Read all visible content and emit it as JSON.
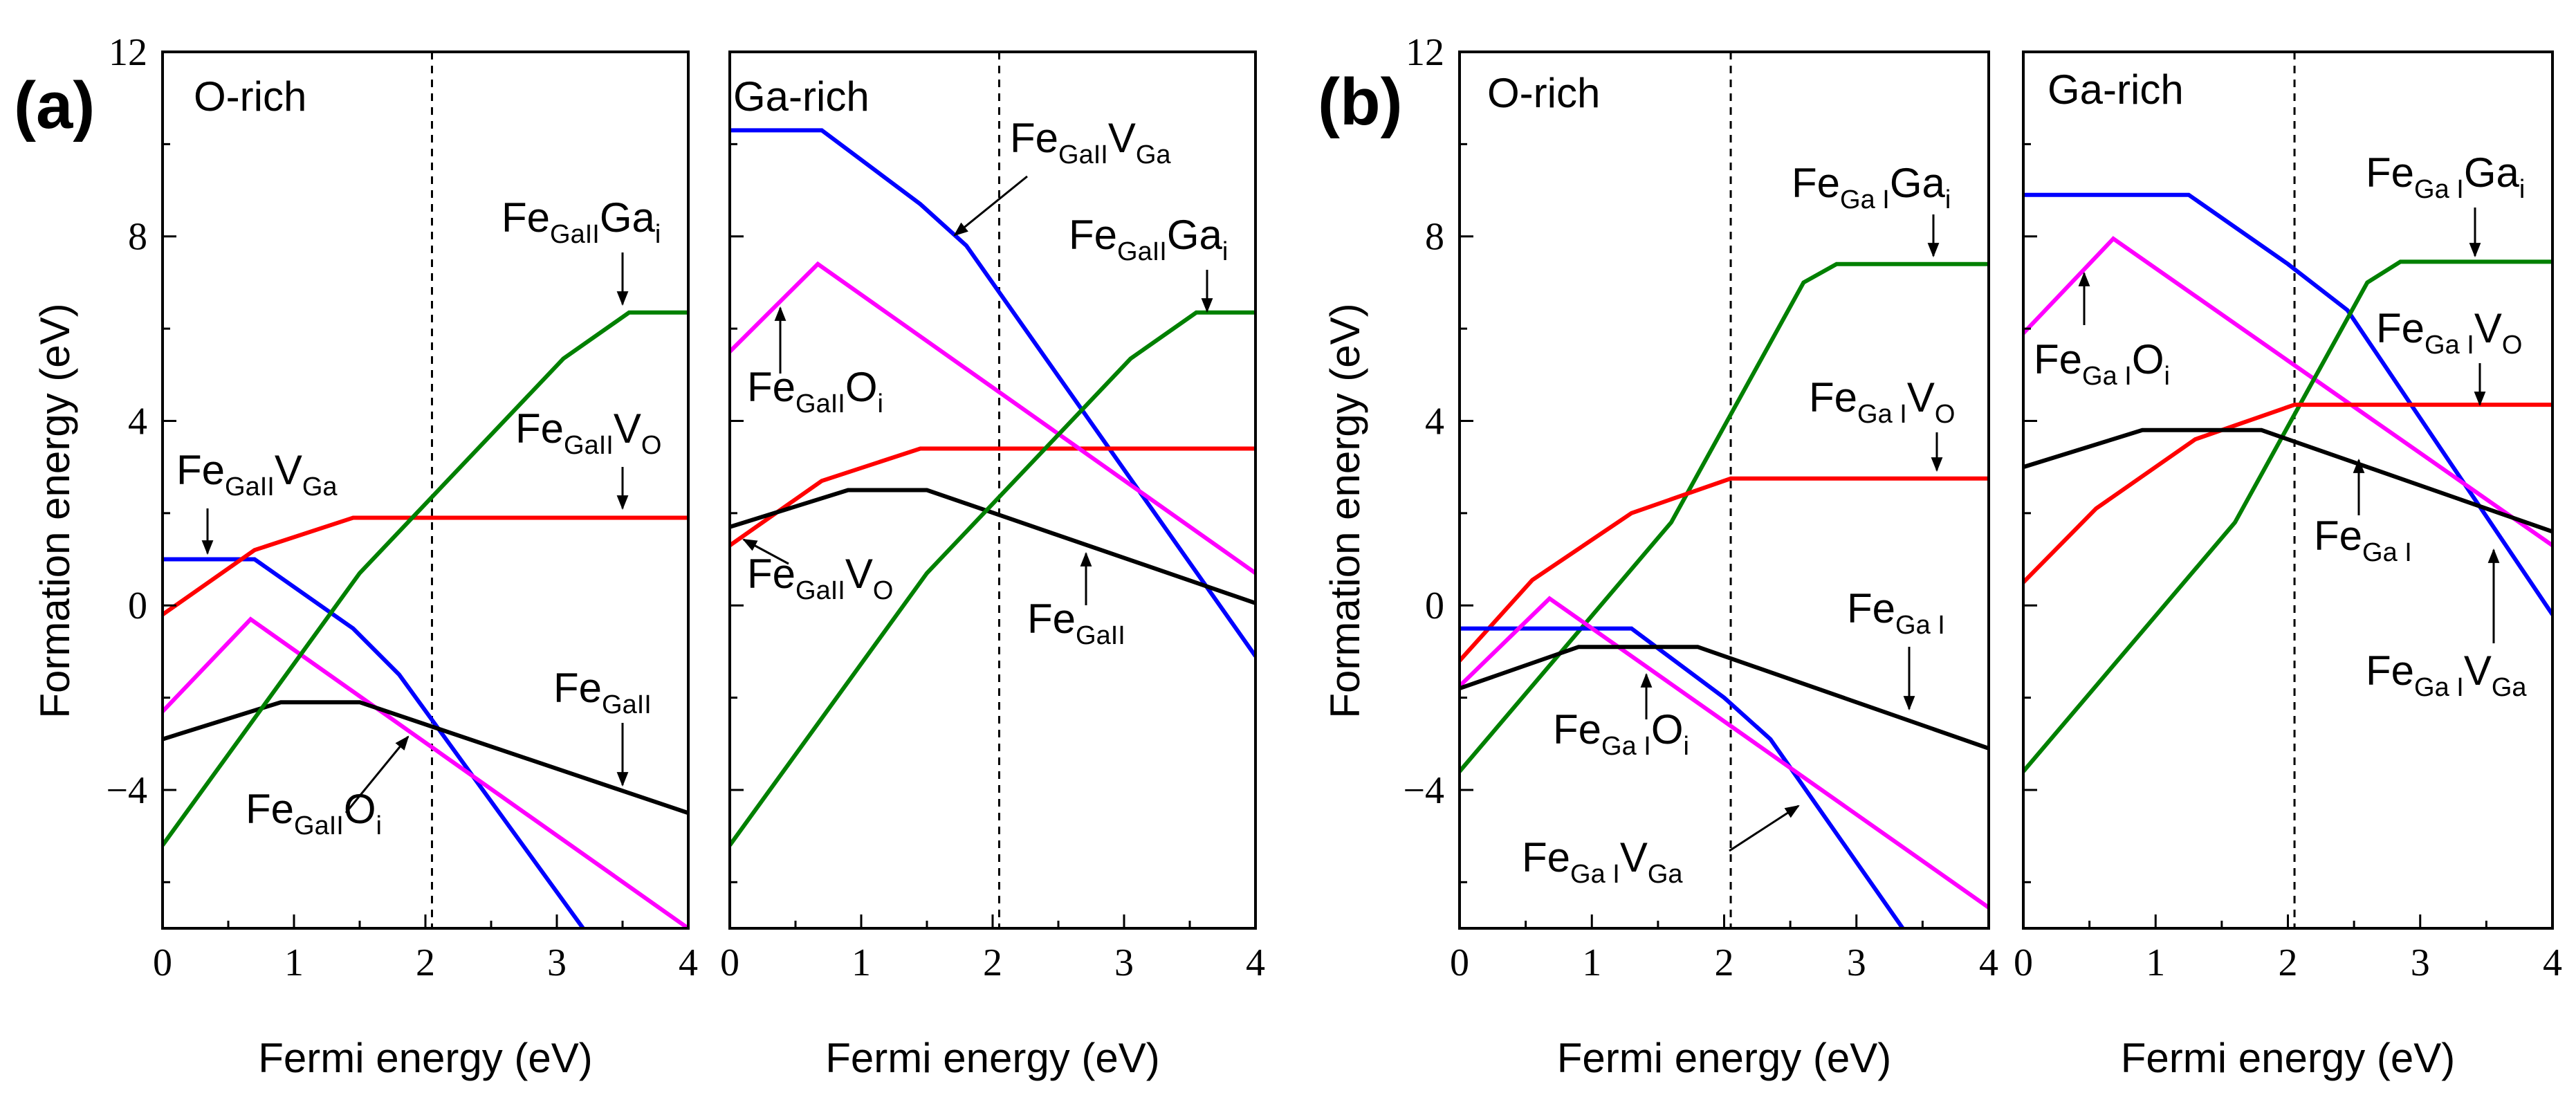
{
  "chart_data": [
    {
      "type": "line",
      "panel_label": "(a)",
      "title": "O-rich",
      "xlabel": "Fermi energy (eV)",
      "ylabel": "Formation energy (eV)",
      "xlim": [
        0,
        4
      ],
      "ylim": [
        -7,
        12
      ],
      "xticks": [
        "0",
        "1",
        "2",
        "3",
        "4"
      ],
      "yticks": [
        "12",
        "8",
        "4",
        "0",
        "−4"
      ],
      "ytick_values": [
        12,
        8,
        4,
        0,
        -4
      ],
      "vline_x": 2.05,
      "series": [
        {
          "name": "Fe_GaII V_Ga",
          "color": "#0000ff",
          "points": [
            [
              0,
              1.0
            ],
            [
              0.7,
              1.0
            ],
            [
              1.45,
              -0.5
            ],
            [
              1.8,
              -1.5
            ],
            [
              3.2,
              -7.0
            ]
          ]
        },
        {
          "name": "Fe_GaII V_O",
          "color": "#ff0000",
          "points": [
            [
              0,
              -0.2
            ],
            [
              0.7,
              1.2
            ],
            [
              1.45,
              1.9
            ],
            [
              4.0,
              1.9
            ]
          ]
        },
        {
          "name": "Fe_GaII O_i",
          "color": "#ff00ff",
          "points": [
            [
              0,
              -2.3
            ],
            [
              0.67,
              -0.3
            ],
            [
              4.0,
              -7.0
            ]
          ]
        },
        {
          "name": "Fe_GaII",
          "color": "#000000",
          "points": [
            [
              0,
              -2.9
            ],
            [
              0.9,
              -2.1
            ],
            [
              1.5,
              -2.1
            ],
            [
              4.0,
              -4.5
            ]
          ]
        },
        {
          "name": "Fe_GaII Ga_i",
          "color": "#008000",
          "points": [
            [
              0,
              -5.2
            ],
            [
              1.5,
              0.7
            ],
            [
              3.05,
              5.35
            ],
            [
              3.55,
              6.35
            ],
            [
              4.0,
              6.35
            ]
          ]
        }
      ],
      "annotations": [
        {
          "base": "Fe",
          "sub": "GaII",
          "tail": "V",
          "tail_sub": "Ga"
        },
        {
          "base": "Fe",
          "sub": "GaII",
          "tail": "V",
          "tail_sub": "O"
        },
        {
          "base": "Fe",
          "sub": "GaII",
          "tail": "O",
          "tail_sub": "i"
        },
        {
          "base": "Fe",
          "sub": "GaII",
          "tail": "",
          "tail_sub": ""
        },
        {
          "base": "Fe",
          "sub": "GaII",
          "tail": "Ga",
          "tail_sub": "i"
        }
      ]
    },
    {
      "type": "line",
      "panel_label": "",
      "title": "Ga-rich",
      "xlabel": "Fermi energy (eV)",
      "ylabel": "",
      "xlim": [
        0,
        4
      ],
      "ylim": [
        -7,
        12
      ],
      "xticks": [
        "0",
        "1",
        "2",
        "3",
        "4"
      ],
      "yticks": [],
      "ytick_values": [],
      "vline_x": 2.05,
      "series": [
        {
          "name": "Fe_GaII V_Ga",
          "color": "#0000ff",
          "points": [
            [
              0,
              10.3
            ],
            [
              0.7,
              10.3
            ],
            [
              1.45,
              8.7
            ],
            [
              1.8,
              7.8
            ],
            [
              4.0,
              -1.1
            ]
          ]
        },
        {
          "name": "Fe_GaII V_O",
          "color": "#ff0000",
          "points": [
            [
              0,
              1.3
            ],
            [
              0.7,
              2.7
            ],
            [
              1.45,
              3.4
            ],
            [
              4.0,
              3.4
            ]
          ]
        },
        {
          "name": "Fe_GaII O_i",
          "color": "#ff00ff",
          "points": [
            [
              0,
              5.5
            ],
            [
              0.67,
              7.4
            ],
            [
              4.0,
              0.7
            ]
          ]
        },
        {
          "name": "Fe_GaII",
          "color": "#000000",
          "points": [
            [
              0,
              1.7
            ],
            [
              0.9,
              2.5
            ],
            [
              1.5,
              2.5
            ],
            [
              4.0,
              0.05
            ]
          ]
        },
        {
          "name": "Fe_GaII Ga_i",
          "color": "#008000",
          "points": [
            [
              0,
              -5.2
            ],
            [
              1.5,
              0.7
            ],
            [
              3.05,
              5.35
            ],
            [
              3.55,
              6.35
            ],
            [
              4.0,
              6.35
            ]
          ]
        }
      ],
      "annotations": [
        {
          "base": "Fe",
          "sub": "GaII",
          "tail": "V",
          "tail_sub": "Ga"
        },
        {
          "base": "Fe",
          "sub": "GaII",
          "tail": "Ga",
          "tail_sub": "i"
        },
        {
          "base": "Fe",
          "sub": "GaII",
          "tail": "O",
          "tail_sub": "i"
        },
        {
          "base": "Fe",
          "sub": "GaII",
          "tail": "V",
          "tail_sub": "O"
        },
        {
          "base": "Fe",
          "sub": "GaII",
          "tail": "",
          "tail_sub": ""
        }
      ]
    },
    {
      "type": "line",
      "panel_label": "(b)",
      "title": "O-rich",
      "xlabel": "Fermi energy (eV)",
      "ylabel": "Formation energy (eV)",
      "xlim": [
        0,
        4
      ],
      "ylim": [
        -7,
        12
      ],
      "xticks": [
        "0",
        "1",
        "2",
        "3",
        "4"
      ],
      "yticks": [
        "12",
        "8",
        "4",
        "0",
        "−4"
      ],
      "ytick_values": [
        12,
        8,
        4,
        0,
        -4
      ],
      "vline_x": 2.05,
      "series": [
        {
          "name": "Fe_GaI Ga_i",
          "color": "#008000",
          "points": [
            [
              0,
              -3.6
            ],
            [
              1.6,
              1.8
            ],
            [
              2.6,
              7.0
            ],
            [
              2.85,
              7.4
            ],
            [
              4.0,
              7.4
            ]
          ]
        },
        {
          "name": "Fe_GaI V_O",
          "color": "#ff0000",
          "points": [
            [
              0,
              -1.2
            ],
            [
              0.55,
              0.55
            ],
            [
              1.3,
              2.0
            ],
            [
              2.05,
              2.75
            ],
            [
              4.0,
              2.75
            ]
          ]
        },
        {
          "name": "Fe_GaI V_Ga",
          "color": "#0000ff",
          "points": [
            [
              0,
              -0.5
            ],
            [
              1.3,
              -0.5
            ],
            [
              2.0,
              -2.0
            ],
            [
              2.35,
              -2.9
            ],
            [
              3.35,
              -7.0
            ]
          ]
        },
        {
          "name": "Fe_GaI O_i",
          "color": "#ff00ff",
          "points": [
            [
              0,
              -1.75
            ],
            [
              0.68,
              0.15
            ],
            [
              4.0,
              -6.55
            ]
          ]
        },
        {
          "name": "Fe_GaI",
          "color": "#000000",
          "points": [
            [
              0,
              -1.8
            ],
            [
              0.9,
              -0.9
            ],
            [
              1.8,
              -0.9
            ],
            [
              4.0,
              -3.1
            ]
          ]
        }
      ],
      "annotations": [
        {
          "base": "Fe",
          "sub": "Ga I",
          "tail": "Ga",
          "tail_sub": "i"
        },
        {
          "base": "Fe",
          "sub": "Ga I",
          "tail": "V",
          "tail_sub": "O"
        },
        {
          "base": "Fe",
          "sub": "Ga I",
          "tail": "",
          "tail_sub": ""
        },
        {
          "base": "Fe",
          "sub": "Ga I",
          "tail": "O",
          "tail_sub": "i"
        },
        {
          "base": "Fe",
          "sub": "Ga I",
          "tail": "V",
          "tail_sub": "Ga"
        }
      ]
    },
    {
      "type": "line",
      "panel_label": "",
      "title": "Ga-rich",
      "xlabel": "Fermi energy (eV)",
      "ylabel": "",
      "xlim": [
        0,
        4
      ],
      "ylim": [
        -7,
        12
      ],
      "xticks": [
        "0",
        "1",
        "2",
        "3",
        "4"
      ],
      "yticks": [],
      "ytick_values": [],
      "vline_x": 2.05,
      "series": [
        {
          "name": "Fe_GaI V_Ga",
          "color": "#0000ff",
          "points": [
            [
              0,
              8.9
            ],
            [
              1.25,
              8.9
            ],
            [
              2.0,
              7.4
            ],
            [
              2.45,
              6.4
            ],
            [
              4.0,
              -0.2
            ]
          ]
        },
        {
          "name": "Fe_GaI O_i",
          "color": "#ff00ff",
          "points": [
            [
              0,
              5.9
            ],
            [
              0.68,
              7.95
            ],
            [
              4.0,
              1.3
            ]
          ]
        },
        {
          "name": "Fe_GaI Ga_i",
          "color": "#008000",
          "points": [
            [
              0,
              -3.6
            ],
            [
              1.6,
              1.8
            ],
            [
              2.6,
              7.0
            ],
            [
              2.85,
              7.45
            ],
            [
              4.0,
              7.45
            ]
          ]
        },
        {
          "name": "Fe_GaI V_O",
          "color": "#ff0000",
          "points": [
            [
              0,
              0.5
            ],
            [
              0.55,
              2.1
            ],
            [
              1.3,
              3.6
            ],
            [
              2.05,
              4.35
            ],
            [
              4.0,
              4.35
            ]
          ]
        },
        {
          "name": "Fe_GaI",
          "color": "#000000",
          "points": [
            [
              0,
              3.0
            ],
            [
              0.9,
              3.8
            ],
            [
              1.8,
              3.8
            ],
            [
              4.0,
              1.6
            ]
          ]
        }
      ],
      "annotations": [
        {
          "base": "Fe",
          "sub": "Ga I",
          "tail": "Ga",
          "tail_sub": "i"
        },
        {
          "base": "Fe",
          "sub": "Ga I",
          "tail": "V",
          "tail_sub": "O"
        },
        {
          "base": "Fe",
          "sub": "Ga I",
          "tail": "O",
          "tail_sub": "i"
        },
        {
          "base": "Fe",
          "sub": "Ga I",
          "tail": "",
          "tail_sub": ""
        },
        {
          "base": "Fe",
          "sub": "Ga I",
          "tail": "V",
          "tail_sub": "Ga"
        }
      ]
    }
  ]
}
